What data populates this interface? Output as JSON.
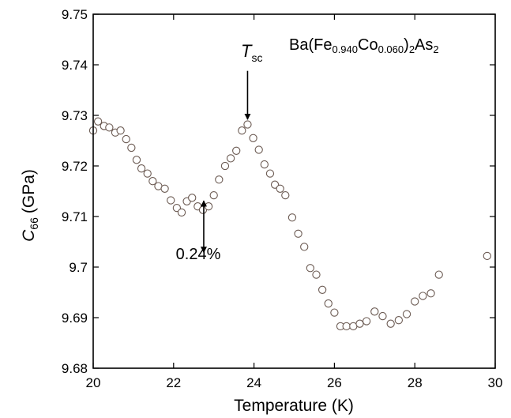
{
  "chart_data": {
    "type": "scatter",
    "title": "",
    "xlabel": "Temperature (K)",
    "ylabel": {
      "main": "C",
      "sub": "66",
      "unit": "(GPa)"
    },
    "xlim": [
      20,
      30
    ],
    "ylim": [
      9.68,
      9.75
    ],
    "x_ticks": [
      20,
      22,
      24,
      26,
      28,
      30
    ],
    "y_ticks": [
      9.68,
      9.69,
      9.7,
      9.71,
      9.72,
      9.73,
      9.74,
      9.75
    ],
    "x_tick_labels": [
      "20",
      "22",
      "24",
      "26",
      "28",
      "30"
    ],
    "y_tick_labels": [
      "9.68",
      "9.69",
      "9.7",
      "9.71",
      "9.72",
      "9.73",
      "9.74",
      "9.75"
    ],
    "grid": false,
    "marker": "open-circle",
    "series": [
      {
        "name": "",
        "points": [
          [
            20.0,
            9.727
          ],
          [
            20.12,
            9.7288
          ],
          [
            20.27,
            9.7279
          ],
          [
            20.4,
            9.7276
          ],
          [
            20.55,
            9.7266
          ],
          [
            20.68,
            9.727
          ],
          [
            20.82,
            9.7253
          ],
          [
            20.95,
            9.7236
          ],
          [
            21.08,
            9.7212
          ],
          [
            21.2,
            9.7195
          ],
          [
            21.35,
            9.7185
          ],
          [
            21.48,
            9.717
          ],
          [
            21.62,
            9.716
          ],
          [
            21.78,
            9.7155
          ],
          [
            21.93,
            9.7132
          ],
          [
            22.08,
            9.7117
          ],
          [
            22.2,
            9.7108
          ],
          [
            22.33,
            9.713
          ],
          [
            22.46,
            9.7137
          ],
          [
            22.6,
            9.712
          ],
          [
            22.73,
            9.7113
          ],
          [
            22.87,
            9.712
          ],
          [
            23.0,
            9.7142
          ],
          [
            23.13,
            9.7173
          ],
          [
            23.28,
            9.72
          ],
          [
            23.42,
            9.7215
          ],
          [
            23.56,
            9.723
          ],
          [
            23.7,
            9.727
          ],
          [
            23.84,
            9.7282
          ],
          [
            23.98,
            9.7255
          ],
          [
            24.12,
            9.7232
          ],
          [
            24.26,
            9.7203
          ],
          [
            24.4,
            9.7185
          ],
          [
            24.52,
            9.7163
          ],
          [
            24.65,
            9.7155
          ],
          [
            24.78,
            9.7142
          ],
          [
            24.95,
            9.7098
          ],
          [
            25.1,
            9.7066
          ],
          [
            25.25,
            9.704
          ],
          [
            25.4,
            9.6998
          ],
          [
            25.55,
            9.6985
          ],
          [
            25.7,
            9.6955
          ],
          [
            25.85,
            9.6928
          ],
          [
            26.0,
            9.691
          ],
          [
            26.15,
            9.6883
          ],
          [
            26.3,
            9.6883
          ],
          [
            26.47,
            9.6883
          ],
          [
            26.63,
            9.6888
          ],
          [
            26.8,
            9.6893
          ],
          [
            27.0,
            9.6912
          ],
          [
            27.2,
            9.6903
          ],
          [
            27.4,
            9.6888
          ],
          [
            27.6,
            9.6895
          ],
          [
            27.8,
            9.6907
          ],
          [
            28.0,
            9.6932
          ],
          [
            28.2,
            9.6943
          ],
          [
            28.4,
            9.6948
          ],
          [
            28.6,
            9.6985
          ],
          [
            29.8,
            9.7022
          ]
        ]
      }
    ],
    "annotations": {
      "compound": {
        "prefix": "Ba(Fe",
        "sub1": "0.940",
        "mid": "Co",
        "sub2": "0.060",
        "close": ")",
        "sub3": "2",
        "suffix": "As",
        "sub4": "2"
      },
      "tsc": {
        "main": "T",
        "sub": "sc",
        "arrow_x": 23.84,
        "arrow_from_y": 9.7388,
        "arrow_to_y": 9.7292
      },
      "range_arrow": {
        "x": 22.75,
        "from_y": 9.7131,
        "to_y": 9.7029,
        "label": "0.24%"
      }
    }
  }
}
